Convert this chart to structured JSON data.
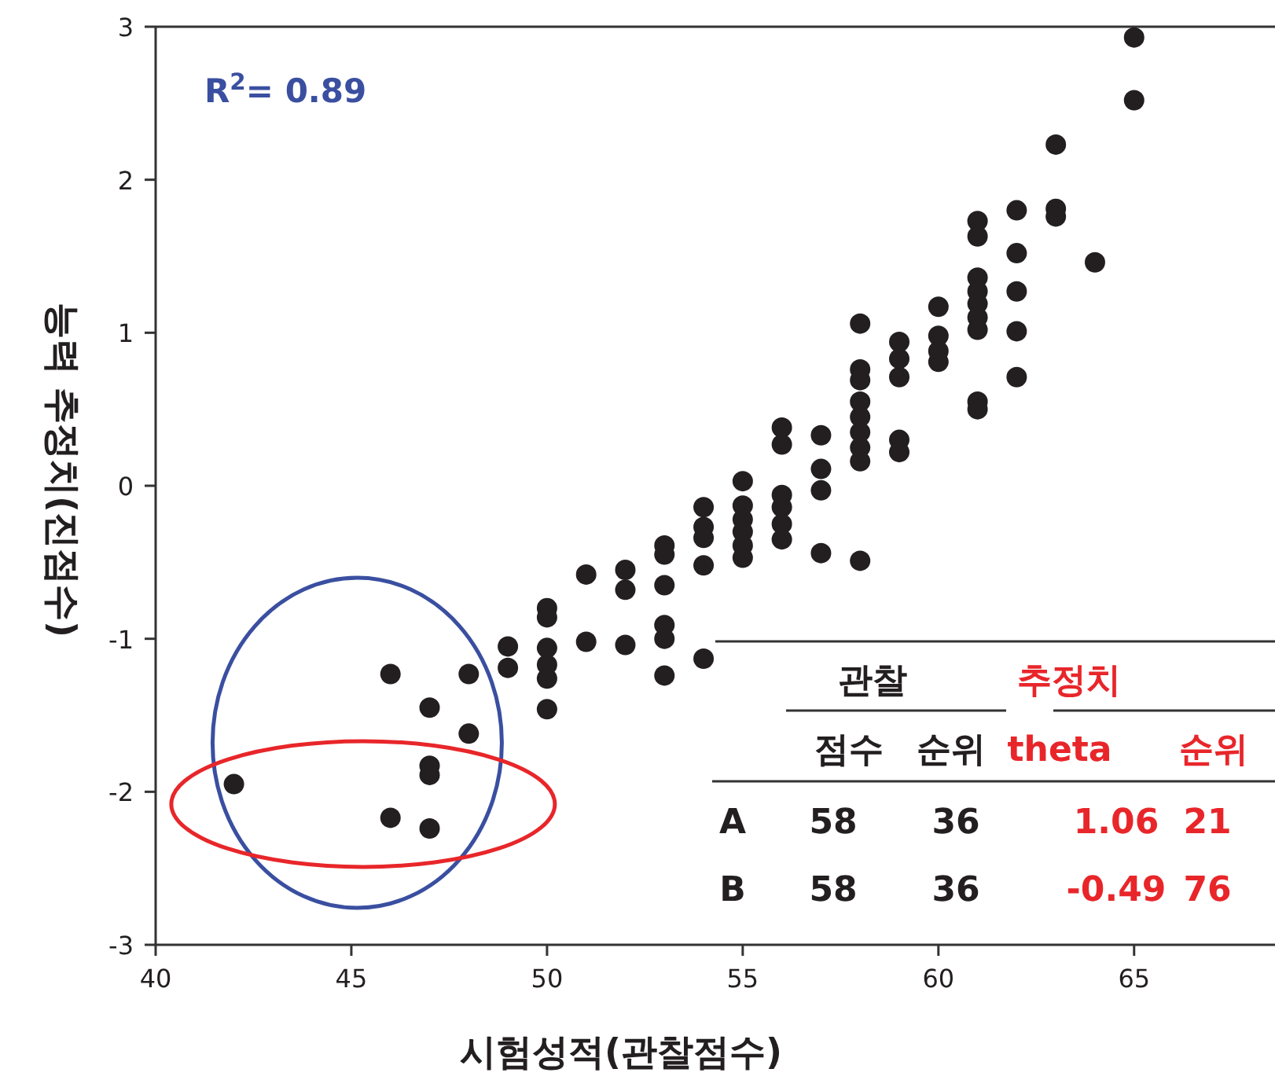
{
  "chart_data": {
    "type": "scatter",
    "xlabel": "시험성적(관찰점수)",
    "ylabel": "능력 추정치(진점수)",
    "xlim": [
      40,
      68.6
    ],
    "ylim": [
      -3,
      3
    ],
    "xticks": [
      40,
      45,
      50,
      55,
      60,
      65
    ],
    "yticks": [
      -3,
      -2,
      -1,
      0,
      1,
      2,
      3
    ],
    "grid": false,
    "marker": "circle",
    "series": [
      {
        "color": "#231f20",
        "x": [
          42,
          46,
          46,
          47,
          47,
          47,
          47,
          48,
          48,
          49,
          49,
          50,
          50,
          50,
          50,
          50,
          50,
          51,
          51,
          52,
          52,
          52,
          53,
          53,
          53,
          53,
          53,
          53,
          54,
          54,
          54,
          54,
          54,
          55,
          55,
          55,
          55,
          55,
          55,
          56,
          56,
          56,
          56,
          56,
          56,
          57,
          57,
          57,
          57,
          58,
          58,
          58,
          58,
          58,
          58,
          58,
          58,
          58,
          59,
          59,
          59,
          59,
          59,
          60,
          60,
          60,
          60,
          61,
          61,
          61,
          61,
          61,
          61,
          61,
          61,
          61,
          62,
          62,
          62,
          62,
          62,
          63,
          63,
          63,
          64,
          65,
          65
        ],
        "values": [
          -1.95,
          -1.23,
          -2.17,
          -1.45,
          -1.83,
          -1.89,
          -2.24,
          -1.23,
          -1.62,
          -1.05,
          -1.19,
          -0.8,
          -0.86,
          -1.06,
          -1.17,
          -1.26,
          -1.46,
          -0.58,
          -1.02,
          -0.55,
          -0.68,
          -1.04,
          -0.39,
          -0.45,
          -0.65,
          -0.91,
          -1.0,
          -1.24,
          -0.14,
          -0.27,
          -0.34,
          -0.52,
          -1.13,
          0.03,
          -0.13,
          -0.22,
          -0.3,
          -0.39,
          -0.47,
          0.38,
          0.27,
          -0.06,
          -0.14,
          -0.25,
          -0.35,
          0.33,
          0.11,
          -0.03,
          -0.44,
          1.06,
          0.76,
          0.69,
          0.55,
          0.45,
          0.35,
          0.25,
          0.16,
          -0.49,
          0.94,
          0.83,
          0.71,
          0.3,
          0.22,
          1.17,
          0.98,
          0.88,
          0.81,
          1.73,
          1.63,
          1.36,
          1.27,
          1.19,
          1.1,
          1.02,
          0.55,
          0.5,
          1.8,
          1.52,
          1.27,
          1.01,
          0.71,
          2.23,
          1.81,
          1.76,
          1.46,
          2.93,
          2.52
        ]
      }
    ],
    "annotations": [
      "R$^{2}$= 0.89",
      "관찰",
      "추정치",
      "점수",
      "순위",
      "theta",
      "순위",
      "A",
      "58",
      "36",
      "1.06",
      "21",
      "B",
      "58",
      "36",
      "-0.49",
      "76"
    ]
  }
}
